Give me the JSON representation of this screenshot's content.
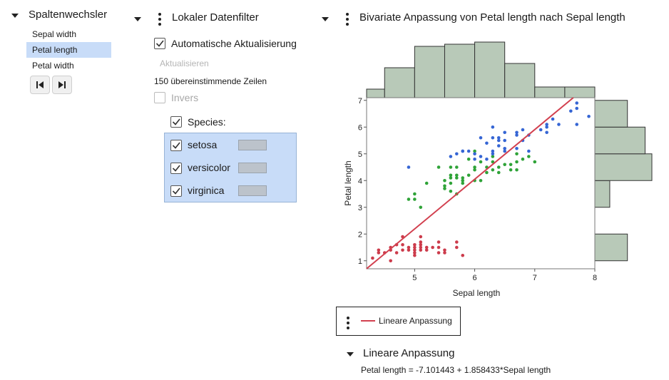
{
  "column_switcher": {
    "title": "Spaltenwechsler",
    "items": [
      {
        "label": "Sepal width",
        "selected": false
      },
      {
        "label": "Petal length",
        "selected": true
      },
      {
        "label": "Petal width",
        "selected": false
      }
    ],
    "first_icon": "skip-to-first-icon",
    "last_icon": "skip-to-last-icon"
  },
  "filter": {
    "title": "Lokaler Datenfilter",
    "auto_update_label": "Automatische Aktualisierung",
    "auto_update_checked": true,
    "update_button": "Aktualisieren",
    "matching_rows": "150 übereinstimmende Zeilen",
    "invert_label": "Invers",
    "invert_checked": false,
    "species_label": "Species:",
    "species_checked": true,
    "levels": [
      {
        "label": "setosa",
        "checked": true
      },
      {
        "label": "versicolor",
        "checked": true
      },
      {
        "label": "virginica",
        "checked": true
      }
    ]
  },
  "plot": {
    "title": "Bivariate Anpassung von Petal length nach Sepal length",
    "legend_label": "Lineare Anpassung",
    "fit_section_title": "Lineare Anpassung",
    "fit_equation": "Petal length = -7.101443 + 1.858433*Sepal length"
  },
  "colors": {
    "setosa": "#cc3b4b",
    "versicolor": "#2fa338",
    "virginica": "#3565d4",
    "fit_line": "#d2404f",
    "hist_fill": "#b8c9b8",
    "selection_bg": "#c8dcf8"
  },
  "chart_data": {
    "type": "scatter",
    "xlabel": "Sepal length",
    "ylabel": "Petal length",
    "xlim": [
      4.2,
      8.0
    ],
    "ylim": [
      0.7,
      7.1
    ],
    "x_ticks": [
      "5",
      "6",
      "7",
      "8"
    ],
    "y_ticks": [
      "1",
      "2",
      "3",
      "4",
      "5",
      "6",
      "7"
    ],
    "fit": {
      "intercept": -7.101443,
      "slope": 1.858433
    },
    "x_histogram": {
      "bin_edges": [
        4.0,
        4.5,
        5.0,
        5.5,
        6.0,
        6.5,
        7.0,
        7.5,
        8.0
      ],
      "counts": [
        4,
        14,
        24,
        25,
        26,
        16,
        5,
        5
      ]
    },
    "y_histogram": {
      "bin_edges": [
        1,
        2,
        3,
        4,
        5,
        6,
        7
      ],
      "counts": [
        24,
        0,
        11,
        42,
        37,
        24
      ]
    },
    "series": [
      {
        "name": "setosa",
        "points": [
          [
            4.3,
            1.1
          ],
          [
            4.4,
            1.3
          ],
          [
            4.4,
            1.4
          ],
          [
            4.5,
            1.3
          ],
          [
            4.6,
            1.4
          ],
          [
            4.6,
            1.5
          ],
          [
            4.6,
            1.0
          ],
          [
            4.7,
            1.3
          ],
          [
            4.7,
            1.6
          ],
          [
            4.8,
            1.6
          ],
          [
            4.8,
            1.4
          ],
          [
            4.8,
            1.9
          ],
          [
            4.9,
            1.4
          ],
          [
            4.9,
            1.5
          ],
          [
            5.0,
            1.4
          ],
          [
            5.0,
            1.5
          ],
          [
            5.0,
            1.6
          ],
          [
            5.0,
            1.2
          ],
          [
            5.0,
            1.3
          ],
          [
            5.1,
            1.4
          ],
          [
            5.1,
            1.5
          ],
          [
            5.1,
            1.7
          ],
          [
            5.1,
            1.9
          ],
          [
            5.1,
            1.6
          ],
          [
            5.2,
            1.5
          ],
          [
            5.2,
            1.4
          ],
          [
            5.3,
            1.5
          ],
          [
            5.4,
            1.7
          ],
          [
            5.4,
            1.5
          ],
          [
            5.4,
            1.3
          ],
          [
            5.5,
            1.4
          ],
          [
            5.5,
            1.3
          ],
          [
            5.7,
            1.5
          ],
          [
            5.7,
            1.7
          ],
          [
            5.8,
            1.2
          ]
        ]
      },
      {
        "name": "versicolor",
        "points": [
          [
            4.9,
            3.3
          ],
          [
            5.0,
            3.5
          ],
          [
            5.0,
            3.3
          ],
          [
            5.1,
            3.0
          ],
          [
            5.2,
            3.9
          ],
          [
            5.4,
            4.5
          ],
          [
            5.5,
            4.0
          ],
          [
            5.5,
            3.8
          ],
          [
            5.5,
            3.7
          ],
          [
            5.6,
            4.5
          ],
          [
            5.6,
            4.1
          ],
          [
            5.6,
            4.2
          ],
          [
            5.6,
            3.9
          ],
          [
            5.6,
            3.6
          ],
          [
            5.7,
            4.5
          ],
          [
            5.7,
            4.1
          ],
          [
            5.7,
            4.2
          ],
          [
            5.7,
            3.5
          ],
          [
            5.8,
            4.1
          ],
          [
            5.8,
            4.0
          ],
          [
            5.8,
            3.9
          ],
          [
            5.9,
            4.8
          ],
          [
            5.9,
            4.2
          ],
          [
            6.0,
            4.5
          ],
          [
            6.0,
            4.0
          ],
          [
            6.0,
            5.1
          ],
          [
            6.0,
            4.4
          ],
          [
            6.1,
            4.7
          ],
          [
            6.1,
            4.0
          ],
          [
            6.2,
            4.5
          ],
          [
            6.2,
            4.3
          ],
          [
            6.3,
            4.7
          ],
          [
            6.3,
            4.9
          ],
          [
            6.3,
            4.4
          ],
          [
            6.4,
            4.5
          ],
          [
            6.4,
            4.3
          ],
          [
            6.5,
            4.6
          ],
          [
            6.6,
            4.6
          ],
          [
            6.6,
            4.4
          ],
          [
            6.7,
            4.7
          ],
          [
            6.7,
            4.4
          ],
          [
            6.7,
            5.0
          ],
          [
            6.8,
            4.8
          ],
          [
            6.9,
            4.9
          ],
          [
            7.0,
            4.7
          ]
        ]
      },
      {
        "name": "virginica",
        "points": [
          [
            4.9,
            4.5
          ],
          [
            5.6,
            4.9
          ],
          [
            5.7,
            5.0
          ],
          [
            5.8,
            5.1
          ],
          [
            5.8,
            5.1
          ],
          [
            5.9,
            5.1
          ],
          [
            6.0,
            4.8
          ],
          [
            6.0,
            5.0
          ],
          [
            6.1,
            4.9
          ],
          [
            6.1,
            5.6
          ],
          [
            6.2,
            4.8
          ],
          [
            6.2,
            5.4
          ],
          [
            6.3,
            5.6
          ],
          [
            6.3,
            5.0
          ],
          [
            6.3,
            5.1
          ],
          [
            6.3,
            6.0
          ],
          [
            6.4,
            5.3
          ],
          [
            6.4,
            5.5
          ],
          [
            6.4,
            5.6
          ],
          [
            6.5,
            5.1
          ],
          [
            6.5,
            5.8
          ],
          [
            6.5,
            5.2
          ],
          [
            6.5,
            5.5
          ],
          [
            6.7,
            5.8
          ],
          [
            6.7,
            5.7
          ],
          [
            6.7,
            5.2
          ],
          [
            6.8,
            5.5
          ],
          [
            6.8,
            5.9
          ],
          [
            6.9,
            5.1
          ],
          [
            6.9,
            5.7
          ],
          [
            7.1,
            5.9
          ],
          [
            7.2,
            6.0
          ],
          [
            7.2,
            6.1
          ],
          [
            7.2,
            5.8
          ],
          [
            7.3,
            6.3
          ],
          [
            7.4,
            6.1
          ],
          [
            7.6,
            6.6
          ],
          [
            7.7,
            6.7
          ],
          [
            7.7,
            6.9
          ],
          [
            7.7,
            6.1
          ],
          [
            7.9,
            6.4
          ]
        ]
      }
    ]
  }
}
